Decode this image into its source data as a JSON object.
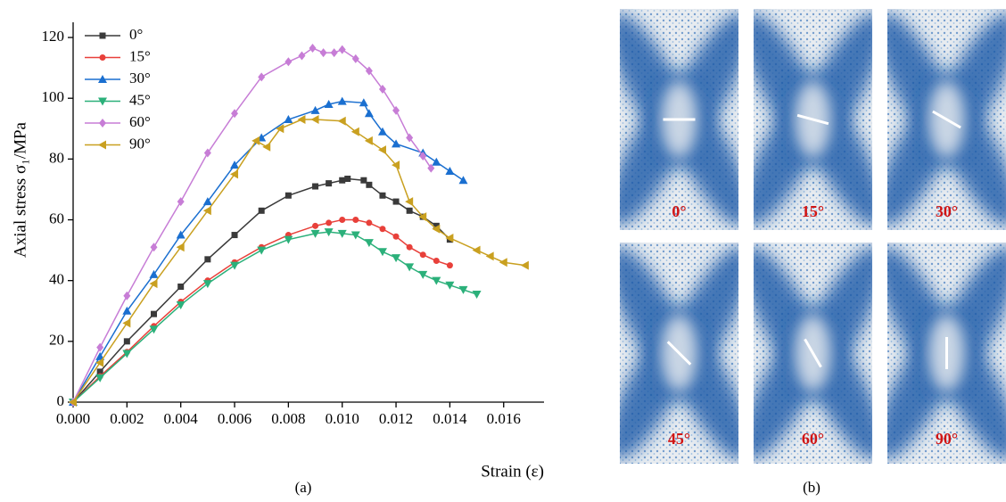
{
  "chart_data": {
    "type": "line",
    "y_label": "Axial stress σ₁/MPa",
    "x_label": "Strain (ε)",
    "xlim": [
      0,
      0.0175
    ],
    "ylim": [
      0,
      125
    ],
    "xticks": [
      {
        "value": 0,
        "label": "0.000"
      },
      {
        "value": 0.002,
        "label": "0.002"
      },
      {
        "value": 0.004,
        "label": "0.004"
      },
      {
        "value": 0.006,
        "label": "0.006"
      },
      {
        "value": 0.008,
        "label": "0.008"
      },
      {
        "value": 0.01,
        "label": "0.010"
      },
      {
        "value": 0.012,
        "label": "0.012"
      },
      {
        "value": 0.014,
        "label": "0.014"
      },
      {
        "value": 0.016,
        "label": "0.016"
      }
    ],
    "yticks": [
      0,
      20,
      40,
      60,
      80,
      100,
      120
    ],
    "legend": "upper-left",
    "series": [
      {
        "name": "0°",
        "color": "#3a3a3a",
        "marker": "square",
        "x": [
          0,
          0.001,
          0.002,
          0.003,
          0.004,
          0.005,
          0.006,
          0.007,
          0.008,
          0.009,
          0.0095,
          0.01,
          0.0102,
          0.0108,
          0.011,
          0.0115,
          0.012,
          0.0125,
          0.013,
          0.0135,
          0.014
        ],
        "values": [
          0,
          10,
          20,
          29,
          38,
          47,
          55,
          63,
          68,
          71,
          72,
          73,
          73.5,
          73,
          71.5,
          68,
          66,
          63,
          61,
          58,
          53.5
        ]
      },
      {
        "name": "15°",
        "color": "#e8403a",
        "marker": "circle",
        "x": [
          0,
          0.001,
          0.002,
          0.003,
          0.004,
          0.005,
          0.006,
          0.007,
          0.008,
          0.009,
          0.0095,
          0.01,
          0.0105,
          0.011,
          0.0115,
          0.012,
          0.0125,
          0.013,
          0.0135,
          0.014
        ],
        "values": [
          0,
          8.5,
          16.5,
          25,
          33,
          40,
          46,
          51,
          55,
          58,
          59,
          60,
          60,
          59,
          57,
          54.5,
          51,
          48.5,
          46.5,
          45
        ]
      },
      {
        "name": "30°",
        "color": "#1a6fd0",
        "marker": "triangle-up",
        "x": [
          0,
          0.001,
          0.002,
          0.003,
          0.004,
          0.005,
          0.006,
          0.007,
          0.008,
          0.009,
          0.0095,
          0.01,
          0.0108,
          0.011,
          0.0115,
          0.012,
          0.013,
          0.0135,
          0.014,
          0.0145
        ],
        "values": [
          0,
          15,
          30,
          42,
          55,
          66,
          78,
          87,
          93,
          96,
          98,
          99,
          98.5,
          95,
          89,
          85,
          82,
          79,
          76,
          73
        ]
      },
      {
        "name": "45°",
        "color": "#2bb07a",
        "marker": "triangle-down",
        "x": [
          0,
          0.001,
          0.002,
          0.003,
          0.004,
          0.005,
          0.006,
          0.007,
          0.008,
          0.009,
          0.0095,
          0.01,
          0.0105,
          0.011,
          0.0115,
          0.012,
          0.0125,
          0.013,
          0.0135,
          0.014,
          0.0145,
          0.015
        ],
        "values": [
          0,
          8,
          16,
          24,
          32,
          39,
          45,
          50,
          53.5,
          55.5,
          56,
          55.5,
          55,
          52.5,
          49.5,
          47.5,
          44.5,
          42,
          40,
          38.5,
          37,
          35.5
        ]
      },
      {
        "name": "60°",
        "color": "#c77dd6",
        "marker": "diamond",
        "x": [
          0,
          0.001,
          0.002,
          0.003,
          0.004,
          0.005,
          0.006,
          0.007,
          0.008,
          0.0085,
          0.0089,
          0.0093,
          0.0097,
          0.01,
          0.0105,
          0.011,
          0.0115,
          0.012,
          0.0125,
          0.013,
          0.0133
        ],
        "values": [
          0,
          18,
          35,
          51,
          66,
          82,
          95,
          107,
          112,
          114,
          116.5,
          115,
          115,
          116,
          113,
          109,
          103,
          96,
          87,
          81,
          77
        ]
      },
      {
        "name": "90°",
        "color": "#c9a020",
        "marker": "triangle-left",
        "x": [
          0,
          0.001,
          0.002,
          0.003,
          0.004,
          0.005,
          0.006,
          0.0068,
          0.0072,
          0.0077,
          0.0085,
          0.009,
          0.01,
          0.0105,
          0.011,
          0.0115,
          0.012,
          0.0125,
          0.013,
          0.0135,
          0.014,
          0.015,
          0.0155,
          0.016,
          0.0168
        ],
        "values": [
          0,
          13,
          26,
          39,
          51,
          63,
          75,
          86,
          84,
          90,
          93,
          93,
          92.5,
          89,
          86,
          83,
          78,
          66,
          61,
          57,
          54,
          50,
          48,
          46,
          45
        ]
      }
    ]
  },
  "panel_a_label": "(a)",
  "panel_b_label": "(b)",
  "images": [
    "0°",
    "15°",
    "30°",
    "45°",
    "60°",
    "90°"
  ]
}
